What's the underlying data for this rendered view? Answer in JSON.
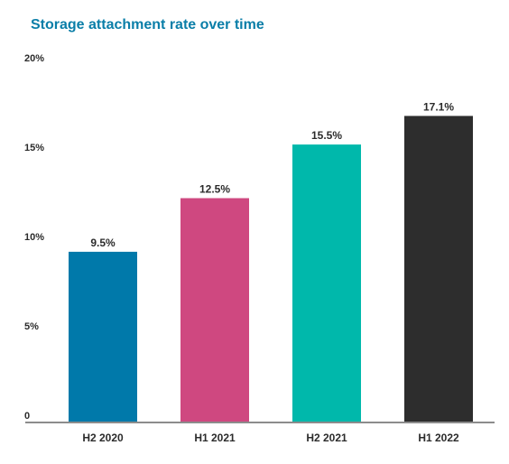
{
  "chart_data": {
    "type": "bar",
    "title": "Storage attachment rate over time",
    "categories": [
      "H2 2020",
      "H1 2021",
      "H2 2021",
      "H1 2022"
    ],
    "values": [
      9.5,
      12.5,
      15.5,
      17.1
    ],
    "value_labels": [
      "9.5%",
      "12.5%",
      "15.5%",
      "17.1%"
    ],
    "colors": [
      "#0079aa",
      "#cf4880",
      "#00b8ab",
      "#2d2d2d"
    ],
    "ylim": [
      0,
      20
    ],
    "yticks": [
      0,
      5,
      10,
      15,
      20
    ],
    "ytick_labels": [
      "0",
      "5%",
      "10%",
      "15%",
      "20%"
    ],
    "xlabel": "",
    "ylabel": "",
    "grid": false,
    "legend": "none",
    "axis_color": "#8c8c8c",
    "title_color": "#0a7ea8"
  }
}
